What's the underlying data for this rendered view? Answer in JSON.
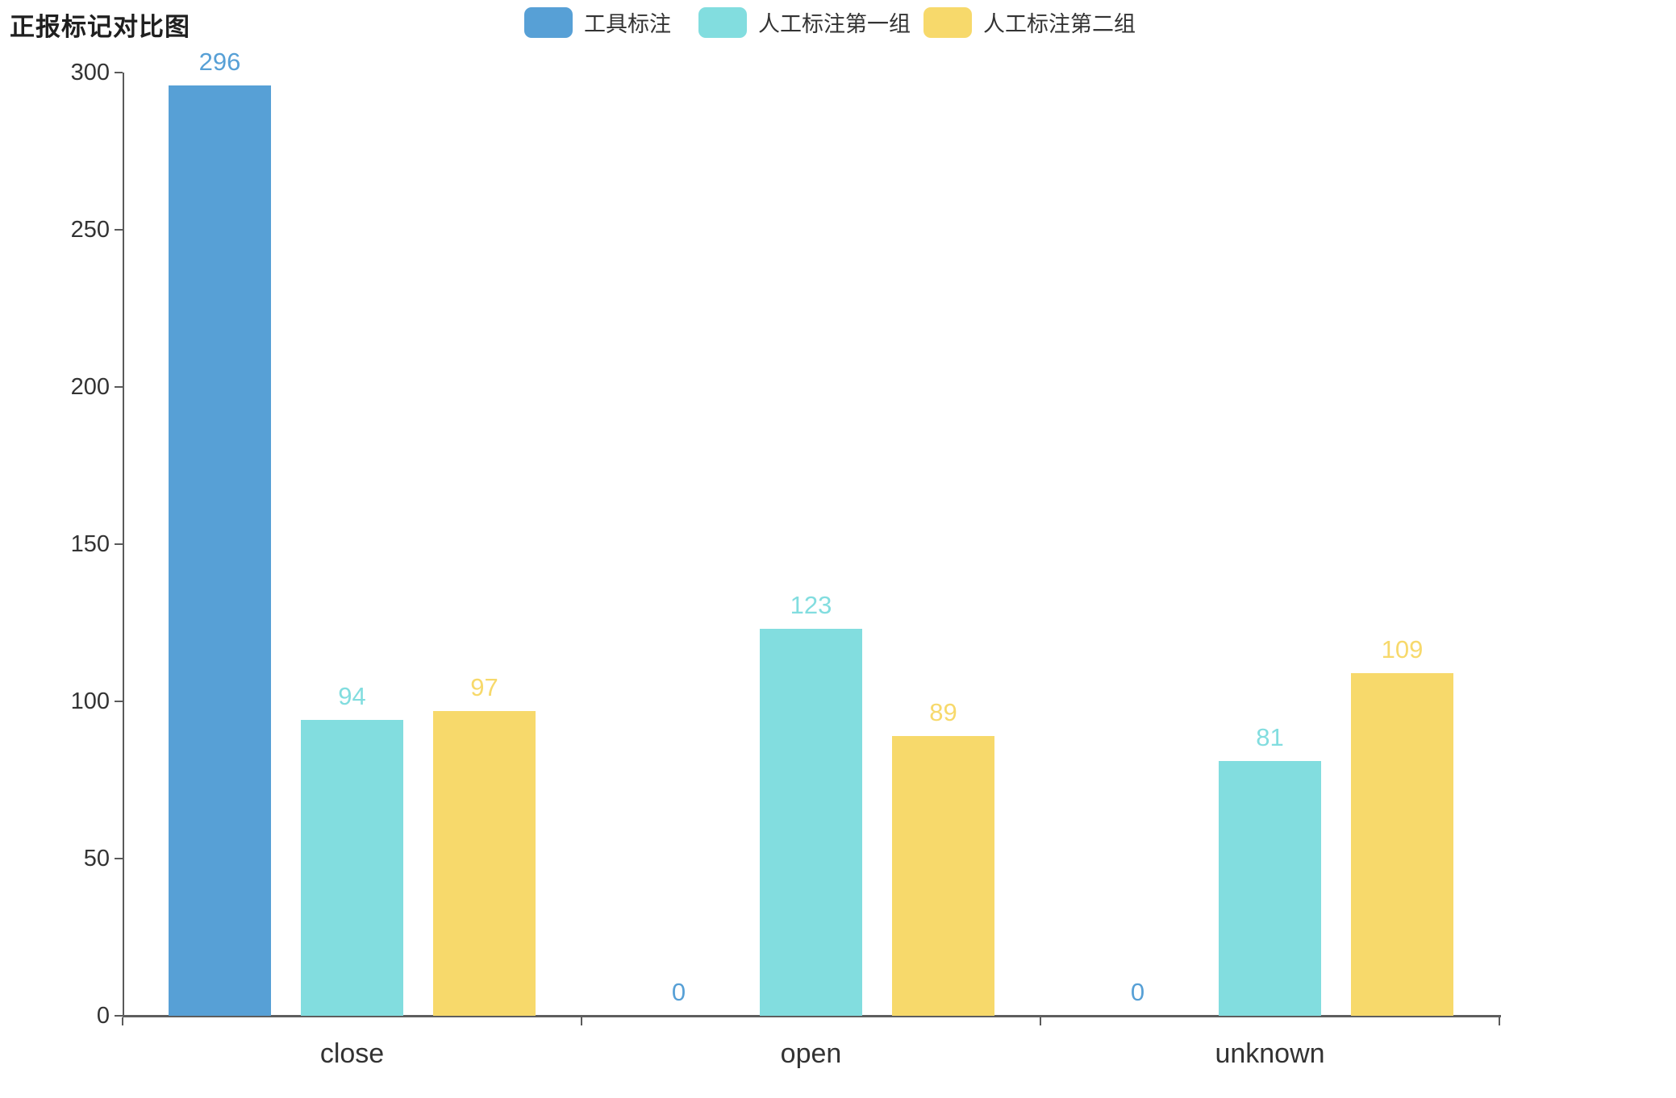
{
  "chart_data": {
    "type": "bar",
    "title": "正报标记对比图",
    "categories": [
      "close",
      "open",
      "unknown"
    ],
    "series": [
      {
        "name": "工具标注",
        "color": "#57A0D6",
        "values": [
          296,
          0,
          0
        ]
      },
      {
        "name": "人工标注第一组",
        "color": "#82DDDF",
        "values": [
          94,
          123,
          81
        ]
      },
      {
        "name": "人工标注第二组",
        "color": "#F7D96B",
        "values": [
          97,
          89,
          109
        ]
      }
    ],
    "ylabel": "",
    "xlabel": "",
    "ylim": [
      0,
      300
    ],
    "y_ticks": [
      0,
      50,
      100,
      150,
      200,
      250,
      300
    ],
    "grid": false,
    "legend_position": "top",
    "value_labels": true
  }
}
